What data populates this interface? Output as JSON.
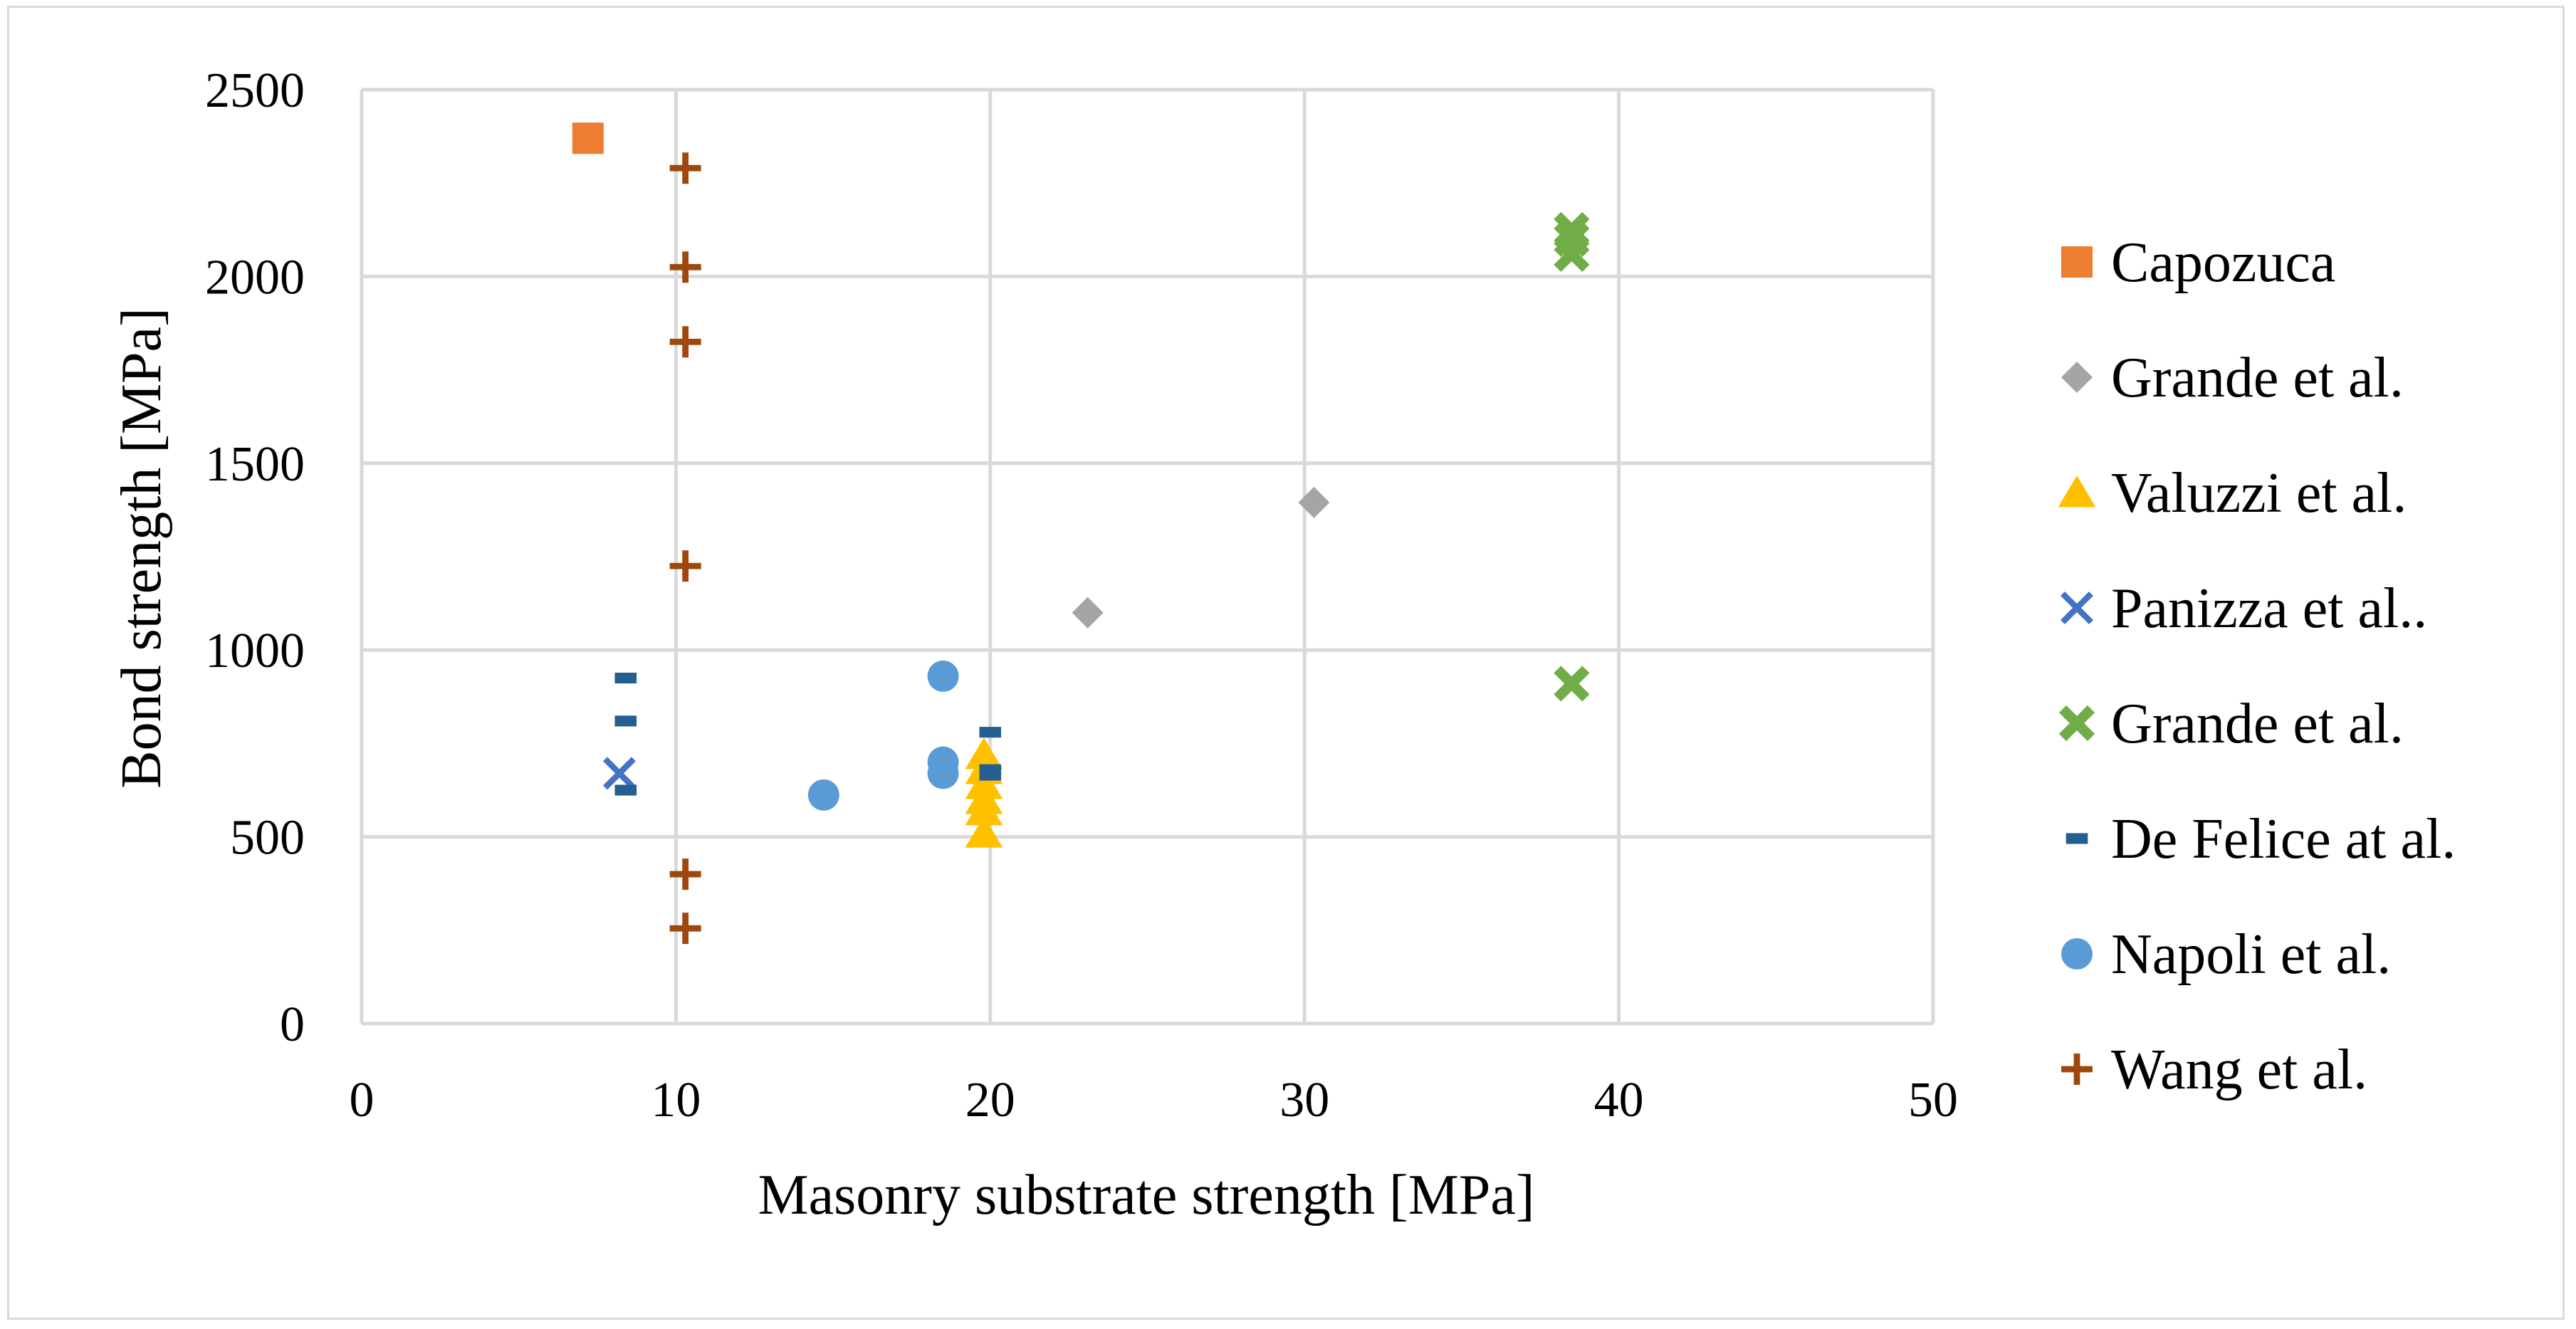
{
  "chart_data": {
    "type": "scatter",
    "title": "",
    "xlabel": "Masonry substrate strength [MPa]",
    "ylabel": "Bond strength [MPa]",
    "xlim": [
      0,
      50
    ],
    "ylim": [
      0,
      2500
    ],
    "x_ticks": [
      0,
      10,
      20,
      30,
      40,
      50
    ],
    "y_ticks": [
      0,
      500,
      1000,
      1500,
      2000,
      2500
    ],
    "grid": true,
    "legend_position": "right",
    "series": [
      {
        "name": "Capozuca",
        "marker": "square",
        "color": "#ed7d31",
        "points": [
          [
            7.2,
            2370
          ]
        ]
      },
      {
        "name": "Grande et al.",
        "marker": "diamond",
        "color": "#a5a5a5",
        "points": [
          [
            23.1,
            1100
          ],
          [
            30.3,
            1395
          ]
        ]
      },
      {
        "name": "Valuzzi et al.",
        "marker": "triangle",
        "color": "#ffc000",
        "points": [
          [
            19.8,
            510
          ],
          [
            19.8,
            570
          ],
          [
            19.8,
            600
          ],
          [
            19.8,
            640
          ],
          [
            19.8,
            680
          ],
          [
            19.8,
            720
          ]
        ]
      },
      {
        "name": "Panizza et al..",
        "marker": "x",
        "color": "#4472c4",
        "points": [
          [
            8.2,
            670
          ]
        ]
      },
      {
        "name": "Grande et al.",
        "marker": "star",
        "color": "#70ad47",
        "points": [
          [
            38.5,
            2060
          ],
          [
            38.5,
            2100
          ],
          [
            38.5,
            2125
          ],
          [
            38.5,
            910
          ]
        ]
      },
      {
        "name": "De Felice at al.",
        "marker": "dash",
        "color": "#255e91",
        "points": [
          [
            8.4,
            925
          ],
          [
            8.4,
            810
          ],
          [
            8.4,
            625
          ],
          [
            20.0,
            780
          ],
          [
            20.0,
            680
          ],
          [
            20.0,
            665
          ]
        ]
      },
      {
        "name": "Napoli et al.",
        "marker": "circle",
        "color": "#5b9bd5",
        "points": [
          [
            14.7,
            612
          ],
          [
            18.5,
            930
          ],
          [
            18.5,
            700
          ],
          [
            18.5,
            670
          ]
        ]
      },
      {
        "name": "Wang et al.",
        "marker": "plus",
        "color": "#9e480e",
        "points": [
          [
            10.3,
            2290
          ],
          [
            10.3,
            2025
          ],
          [
            10.3,
            1825
          ],
          [
            10.3,
            1225
          ],
          [
            10.3,
            400
          ],
          [
            10.3,
            255
          ]
        ]
      }
    ]
  }
}
